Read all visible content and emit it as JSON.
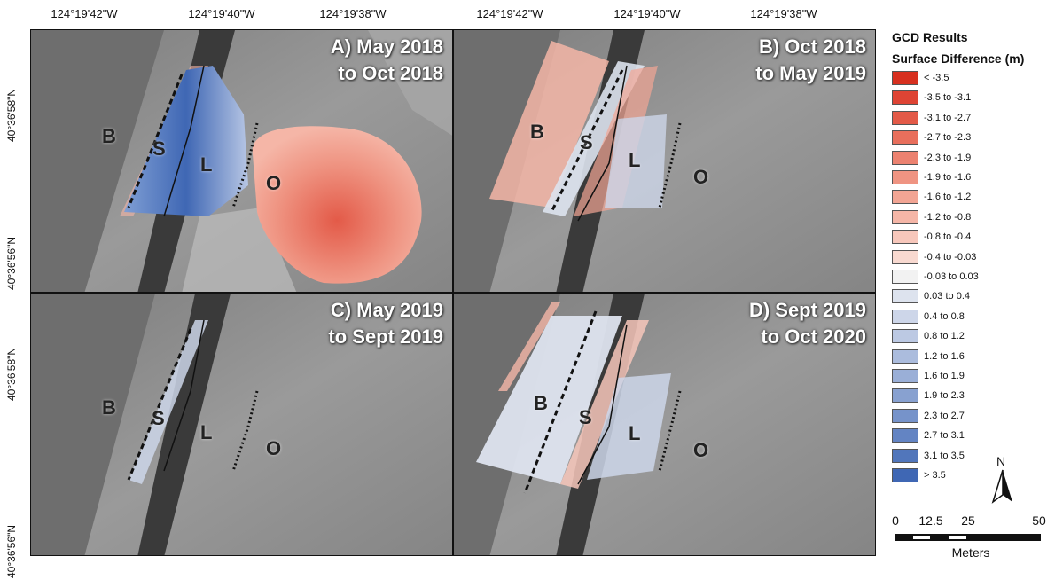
{
  "axes": {
    "longitude_ticks": [
      "124°19'42\"W",
      "124°19'40\"W",
      "124°19'38\"W",
      "124°19'42\"W",
      "124°19'40\"W",
      "124°19'38\"W"
    ],
    "latitude_ticks": [
      "40°36'58\"N",
      "40°36'56\"N",
      "40°36'58\"N",
      "40°36'56\"N"
    ]
  },
  "panels": [
    {
      "id": "A",
      "title_line1": "A) May 2018",
      "title_line2": "to Oct 2018"
    },
    {
      "id": "B",
      "title_line1": "B) Oct 2018",
      "title_line2": "to May 2019"
    },
    {
      "id": "C",
      "title_line1": "C) May 2019",
      "title_line2": "to Sept 2019"
    },
    {
      "id": "D",
      "title_line1": "D) Sept 2019",
      "title_line2": "to Oct 2020"
    }
  ],
  "zone_labels": {
    "beach": "B",
    "spit": "S",
    "lagoon": "L",
    "overwash": "O"
  },
  "legend": {
    "title": "GCD Results",
    "subtitle": "Surface Difference (m)",
    "classes": [
      {
        "label": "< -3.5",
        "color": "#d7301f"
      },
      {
        "label": "-3.5 to -3.1",
        "color": "#de4434"
      },
      {
        "label": "-3.1 to -2.7",
        "color": "#e35a48"
      },
      {
        "label": "-2.7 to -2.3",
        "color": "#e86f5c"
      },
      {
        "label": "-2.3 to -1.9",
        "color": "#ec8270"
      },
      {
        "label": "-1.9 to -1.6",
        "color": "#ef9482"
      },
      {
        "label": "-1.6 to -1.2",
        "color": "#f2a594"
      },
      {
        "label": "-1.2 to -0.8",
        "color": "#f5b6a7"
      },
      {
        "label": "-0.8 to -0.4",
        "color": "#f7c7bb"
      },
      {
        "label": "-0.4 to -0.03",
        "color": "#f8d9d0"
      },
      {
        "label": "-0.03 to 0.03",
        "color": "#f2f2f2"
      },
      {
        "label": "0.03 to 0.4",
        "color": "#dde3ee"
      },
      {
        "label": "0.4 to 0.8",
        "color": "#cdd6e9"
      },
      {
        "label": "0.8 to 1.2",
        "color": "#bcc9e3"
      },
      {
        "label": "1.2 to 1.6",
        "color": "#abbcdd"
      },
      {
        "label": "1.6 to 1.9",
        "color": "#9aafd7"
      },
      {
        "label": "1.9 to 2.3",
        "color": "#88a1d0"
      },
      {
        "label": "2.3 to 2.7",
        "color": "#7693ca"
      },
      {
        "label": "2.7 to 3.1",
        "color": "#6384c3"
      },
      {
        "label": "3.1 to 3.5",
        "color": "#5176bb"
      },
      {
        "label": "> 3.5",
        "color": "#3f67b4"
      }
    ]
  },
  "north_arrow": {
    "label": "N"
  },
  "scale_bar": {
    "ticks": [
      "0",
      "12.5",
      "25",
      "50"
    ],
    "unit": "Meters"
  },
  "colors": {
    "erosion_red": "#e46d5a",
    "deposition_blue": "#4f78bd",
    "neutral_gray": "#8c8c8c"
  }
}
